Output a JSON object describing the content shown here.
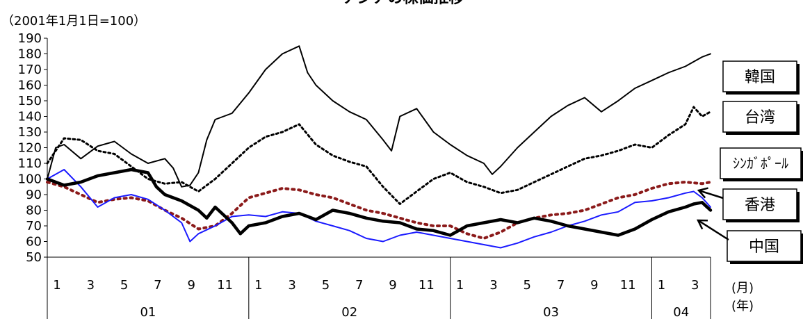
{
  "chart_data": {
    "type": "line",
    "title": "アジアの株価推移",
    "ylabel": "（2001年1月1日=100）",
    "ylim": [
      50,
      190
    ],
    "yticks": [
      50,
      60,
      70,
      80,
      90,
      100,
      110,
      120,
      130,
      140,
      150,
      160,
      170,
      180,
      190
    ],
    "x_month_unit": "(月)",
    "x_year_unit": "(年)",
    "month_ticks": [
      {
        "m": 1,
        "label": "1"
      },
      {
        "m": 3,
        "label": "3"
      },
      {
        "m": 5,
        "label": "5"
      },
      {
        "m": 7,
        "label": "7"
      },
      {
        "m": 9,
        "label": "9"
      },
      {
        "m": 11,
        "label": "11"
      },
      {
        "m": 13,
        "label": "1"
      },
      {
        "m": 15,
        "label": "3"
      },
      {
        "m": 17,
        "label": "5"
      },
      {
        "m": 19,
        "label": "7"
      },
      {
        "m": 21,
        "label": "9"
      },
      {
        "m": 23,
        "label": "11"
      },
      {
        "m": 25,
        "label": "1"
      },
      {
        "m": 27,
        "label": "3"
      },
      {
        "m": 29,
        "label": "5"
      },
      {
        "m": 31,
        "label": "7"
      },
      {
        "m": 33,
        "label": "9"
      },
      {
        "m": 35,
        "label": "11"
      },
      {
        "m": 37,
        "label": "1"
      },
      {
        "m": 39,
        "label": "3"
      }
    ],
    "years": [
      {
        "label": "01",
        "start": 1,
        "end": 13
      },
      {
        "label": "02",
        "start": 13,
        "end": 25
      },
      {
        "label": "03",
        "start": 25,
        "end": 37
      },
      {
        "label": "04",
        "start": 37,
        "end": 40.5
      }
    ],
    "xlim": [
      1,
      40.5
    ],
    "legend_boxes": [
      {
        "label": "韓国"
      },
      {
        "label": "台湾"
      },
      {
        "label": "ｼﾝｶﾞﾎﾟｰﾙ"
      },
      {
        "label": "香港"
      },
      {
        "label": "中国"
      }
    ],
    "series": [
      {
        "name": "韓国",
        "color": "#000000",
        "style": "solid-thin",
        "x": [
          1,
          1.5,
          2,
          3,
          4,
          5,
          5.5,
          6,
          7,
          8,
          8.5,
          9,
          9.5,
          10,
          10.5,
          11,
          12,
          13,
          14,
          15,
          16,
          16.5,
          17,
          18,
          19,
          20,
          21,
          21.5,
          22,
          23,
          24,
          25,
          26,
          27,
          27.5,
          28,
          29,
          30,
          31,
          32,
          33,
          34,
          35,
          36,
          37,
          38,
          39,
          39.5,
          40,
          40.5
        ],
        "y": [
          100,
          120,
          122,
          113,
          121,
          124,
          120,
          116,
          110,
          113,
          107,
          95,
          96,
          104,
          125,
          138,
          142,
          155,
          170,
          180,
          185,
          168,
          160,
          150,
          143,
          138,
          125,
          118,
          140,
          145,
          130,
          122,
          115,
          110,
          103,
          108,
          120,
          130,
          140,
          147,
          152,
          143,
          150,
          158,
          163,
          168,
          172,
          175,
          178,
          180
        ]
      },
      {
        "name": "台湾",
        "color": "#000000",
        "style": "dotted",
        "x": [
          1,
          2,
          3,
          4,
          5,
          6,
          7,
          8,
          9,
          9.5,
          10,
          11,
          12,
          13,
          14,
          15,
          16,
          17,
          18,
          19,
          20,
          21,
          22,
          23,
          24,
          25,
          26,
          27,
          28,
          29,
          30,
          31,
          32,
          33,
          34,
          35,
          36,
          37,
          38,
          39,
          39.5,
          40,
          40.5
        ],
        "y": [
          110,
          126,
          125,
          118,
          116,
          108,
          100,
          97,
          98,
          95,
          92,
          100,
          110,
          120,
          127,
          130,
          135,
          122,
          115,
          111,
          108,
          95,
          84,
          92,
          100,
          104,
          98,
          95,
          91,
          93,
          98,
          103,
          108,
          113,
          115,
          118,
          122,
          120,
          128,
          135,
          146,
          140,
          143
        ]
      },
      {
        "name": "ｼﾝｶﾞﾎﾟｰﾙ",
        "color": "#8b1a1a",
        "style": "dashed",
        "x": [
          1,
          2,
          3,
          4,
          5,
          6,
          7,
          8,
          9,
          10,
          11,
          12,
          13,
          14,
          15,
          16,
          17,
          18,
          19,
          20,
          21,
          22,
          23,
          24,
          25,
          26,
          27,
          28,
          29,
          30,
          31,
          32,
          33,
          34,
          35,
          36,
          37,
          38,
          39,
          40,
          40.5
        ],
        "y": [
          98,
          95,
          90,
          85,
          87,
          88,
          86,
          80,
          75,
          68,
          70,
          78,
          88,
          91,
          94,
          93,
          90,
          88,
          84,
          80,
          78,
          75,
          72,
          70,
          70,
          65,
          62,
          66,
          72,
          75,
          77,
          78,
          80,
          84,
          88,
          90,
          94,
          97,
          98,
          97,
          98
        ]
      },
      {
        "name": "香港",
        "color": "#1a1aff",
        "style": "solid-thin",
        "x": [
          1,
          2,
          3,
          4,
          5,
          6,
          7,
          8,
          9,
          9.5,
          10,
          11,
          12,
          13,
          14,
          15,
          16,
          17,
          18,
          19,
          20,
          21,
          22,
          23,
          24,
          25,
          26,
          27,
          28,
          29,
          30,
          31,
          32,
          33,
          34,
          35,
          36,
          37,
          38,
          39,
          39.5,
          40,
          40.5
        ],
        "y": [
          100,
          106,
          95,
          82,
          88,
          90,
          87,
          80,
          72,
          60,
          65,
          70,
          76,
          77,
          76,
          79,
          78,
          73,
          70,
          67,
          62,
          60,
          64,
          66,
          64,
          62,
          60,
          58,
          56,
          59,
          63,
          66,
          70,
          73,
          77,
          79,
          85,
          86,
          88,
          91,
          92,
          88,
          82
        ]
      },
      {
        "name": "中国",
        "color": "#000000",
        "style": "solid-thick",
        "x": [
          1,
          2,
          3,
          4,
          5,
          6,
          7,
          7.5,
          8,
          9,
          10,
          10.5,
          11,
          12,
          12.5,
          13,
          14,
          15,
          16,
          17,
          18,
          19,
          20,
          21,
          22,
          23,
          24,
          25,
          26,
          27,
          28,
          29,
          30,
          31,
          32,
          33,
          34,
          35,
          36,
          37,
          38,
          39,
          39.5,
          40,
          40.5
        ],
        "y": [
          100,
          96,
          98,
          102,
          104,
          106,
          104,
          95,
          90,
          86,
          80,
          75,
          82,
          72,
          65,
          70,
          72,
          76,
          78,
          74,
          80,
          78,
          75,
          73,
          72,
          68,
          67,
          64,
          70,
          72,
          74,
          72,
          75,
          73,
          70,
          68,
          66,
          64,
          68,
          74,
          79,
          82,
          84,
          85,
          80
        ]
      }
    ]
  }
}
